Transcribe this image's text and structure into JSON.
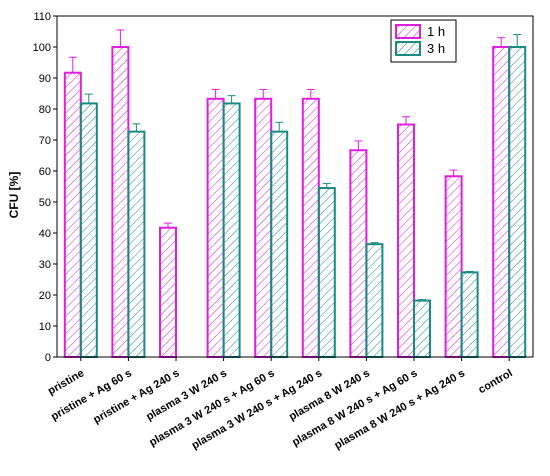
{
  "chart_data": {
    "type": "bar",
    "ylabel": "CFU [%]",
    "xlabel": "",
    "ylim": [
      0,
      110
    ],
    "yticks": [
      0,
      10,
      20,
      30,
      40,
      50,
      60,
      70,
      80,
      90,
      100,
      110
    ],
    "categories": [
      "pristine",
      "pristine + Ag 60 s",
      "pristine + Ag 240 s",
      "plasma 3 W 240 s",
      "plasma 3 W 240 s + Ag 60 s",
      "plasma 3 W 240 s  + Ag 240 s",
      "plasma 8 W 240 s",
      "plasma 8 W 240 s + Ag 60 s",
      "plasma 8 W 240 s  + Ag 240 s",
      "control"
    ],
    "series": [
      {
        "name": "1 h",
        "color": "#e01ee0",
        "hatch": "#e01ee0",
        "values": [
          91.7,
          100,
          41.7,
          83.3,
          83.3,
          83.3,
          66.7,
          75,
          58.3,
          100
        ],
        "errors": [
          5,
          5.5,
          1.5,
          3,
          3,
          3,
          3,
          2.5,
          2,
          3
        ]
      },
      {
        "name": "3 h",
        "color": "#1a8a82",
        "hatch": "#1a8a82",
        "values": [
          81.8,
          72.7,
          null,
          81.8,
          72.7,
          54.5,
          36.4,
          18.2,
          27.3,
          100
        ],
        "errors": [
          3,
          2.5,
          null,
          2.5,
          3,
          1.5,
          0.5,
          0.3,
          0.3,
          4
        ]
      }
    ],
    "legend": {
      "position": "top-right"
    },
    "grid": false
  }
}
